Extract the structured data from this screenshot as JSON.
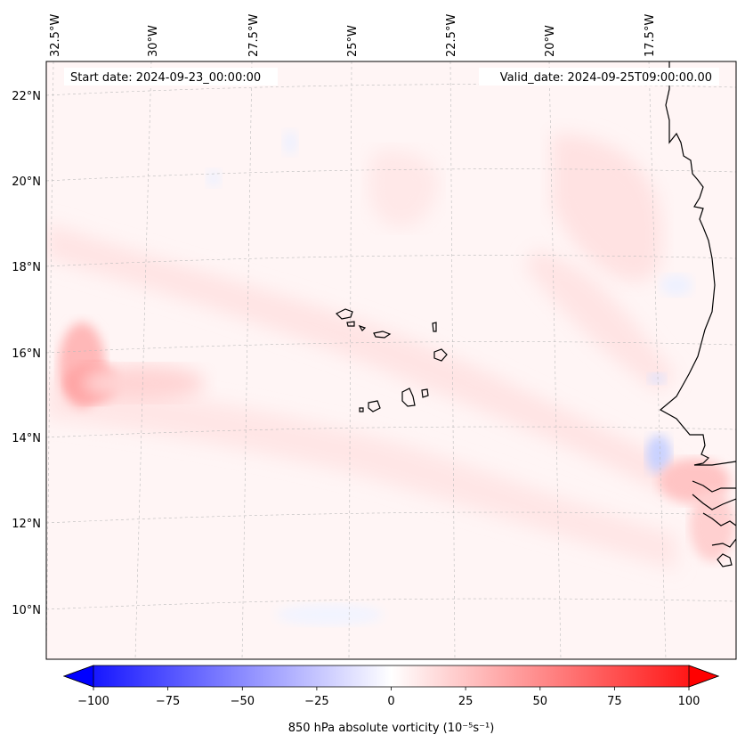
{
  "map": {
    "start_label": "Start date: 2024-09-23_00:00:00",
    "valid_label": "Valid_date: 2024-09-25T09:00:00.00",
    "lon_labels": [
      "32.5°W",
      "30°W",
      "27.5°W",
      "25°W",
      "22.5°W",
      "20°W",
      "17.5°W"
    ],
    "lat_labels": [
      "22°N",
      "20°N",
      "18°N",
      "16°N",
      "14°N",
      "12°N",
      "10°N"
    ],
    "region": "North Atlantic off West Africa with Cape Verde islands"
  },
  "colorbar": {
    "label": "850 hPa absolute vorticity (10⁻⁵s⁻¹)",
    "ticks": [
      "−100",
      "−75",
      "−50",
      "−25",
      "0",
      "25",
      "50",
      "75",
      "100"
    ],
    "min": -100,
    "max": 100,
    "min_color": "#0000ff",
    "mid_color": "#ffffff",
    "max_color": "#ff0000"
  }
}
